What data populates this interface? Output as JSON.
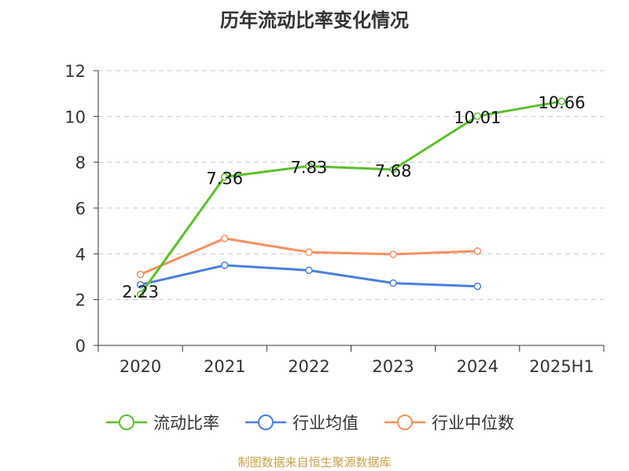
{
  "title": "历年流动比率变化情况",
  "source": "制图数据来自恒生聚源数据库",
  "colors": {
    "current_ratio": "#5cbf2a",
    "industry_mean": "#4a7fdd",
    "industry_median": "#f59060",
    "axis": "#333333",
    "grid": "#c8c8c8",
    "source": "#c8a24a"
  },
  "chart_data": {
    "type": "line",
    "title": "历年流动比率变化情况",
    "categories": [
      "2020",
      "2021",
      "2022",
      "2023",
      "2024",
      "2025H1"
    ],
    "ylim": [
      0,
      12
    ],
    "yticks": [
      0,
      2,
      4,
      6,
      8,
      10,
      12
    ],
    "grid": true,
    "legend_position": "bottom",
    "series": [
      {
        "name": "流动比率",
        "color": "#5cbf2a",
        "values": [
          2.23,
          7.36,
          7.83,
          7.68,
          10.01,
          10.66
        ],
        "labels": [
          "2.23",
          "7.36",
          "7.83",
          "7.68",
          "10.01",
          "10.66"
        ]
      },
      {
        "name": "行业均值",
        "color": "#4a7fdd",
        "values": [
          2.65,
          3.5,
          3.28,
          2.72,
          2.58,
          null
        ]
      },
      {
        "name": "行业中位数",
        "color": "#f59060",
        "values": [
          3.1,
          4.67,
          4.07,
          3.98,
          4.12,
          null
        ]
      }
    ]
  }
}
